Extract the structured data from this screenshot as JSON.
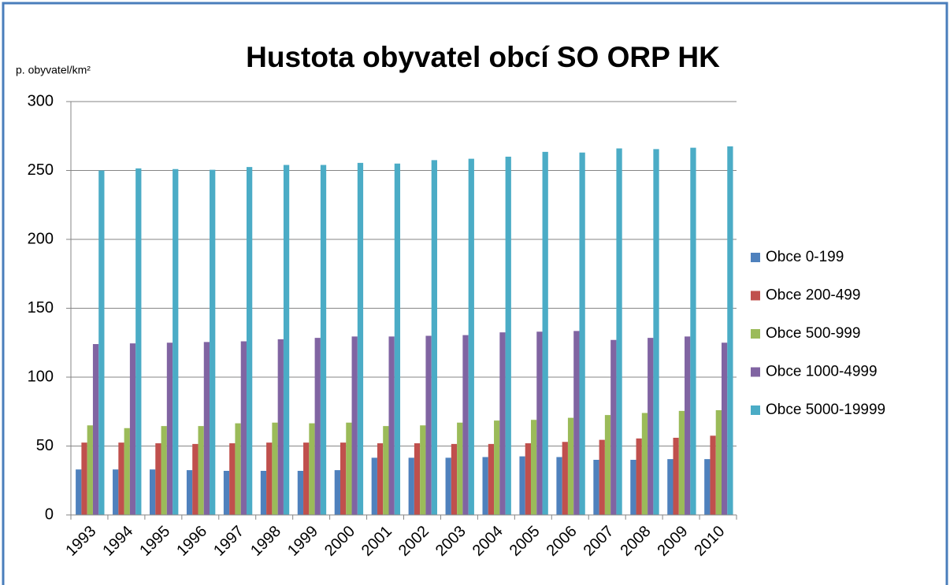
{
  "chart_data": {
    "type": "bar",
    "title": "Hustota obyvatel obcí SO ORP HK",
    "y_label": "p. obyvatel/km²",
    "categories": [
      "1993",
      "1994",
      "1995",
      "1996",
      "1997",
      "1998",
      "1999",
      "2000",
      "2001",
      "2002",
      "2003",
      "2004",
      "2005",
      "2006",
      "2007",
      "2008",
      "2009",
      "2010"
    ],
    "series": [
      {
        "name": "Obce 0-199",
        "color": "#4f81bd",
        "values": [
          33,
          33,
          33,
          32.5,
          32,
          32,
          32,
          32.5,
          41.5,
          41.5,
          41.5,
          42,
          42.5,
          42,
          40,
          40,
          40.5,
          40.5
        ]
      },
      {
        "name": "Obce 200-499",
        "color": "#c0504d",
        "values": [
          52.5,
          52.5,
          52,
          51.5,
          52,
          52.5,
          52.5,
          52.5,
          52,
          52,
          51.5,
          51.5,
          52,
          53,
          54.5,
          55.5,
          56,
          57.5
        ]
      },
      {
        "name": "Obce 500-999",
        "color": "#9bbb59",
        "values": [
          65,
          63,
          64.5,
          64.5,
          66.5,
          67,
          66.5,
          67,
          64.5,
          65,
          67,
          68.5,
          69,
          70.5,
          72.5,
          74,
          75.5,
          76
        ]
      },
      {
        "name": "Obce 1000-4999",
        "color": "#8064a2",
        "values": [
          124,
          124.5,
          125,
          125.5,
          126,
          127.5,
          128.5,
          129.5,
          129.5,
          130,
          130.5,
          132.5,
          133,
          133.5,
          127,
          128.5,
          129.5,
          125
        ]
      },
      {
        "name": "Obce 5000-19999",
        "color": "#4bacc6",
        "values": [
          250,
          251.5,
          251,
          250.5,
          252.5,
          254,
          254,
          255.5,
          255,
          257.5,
          258.5,
          260,
          263.5,
          263,
          266,
          265.5,
          266.5,
          267.5
        ]
      }
    ],
    "ylim": [
      0,
      300
    ],
    "yticks": [
      0,
      50,
      100,
      150,
      200,
      250,
      300
    ],
    "grid": true,
    "legend": "right"
  }
}
